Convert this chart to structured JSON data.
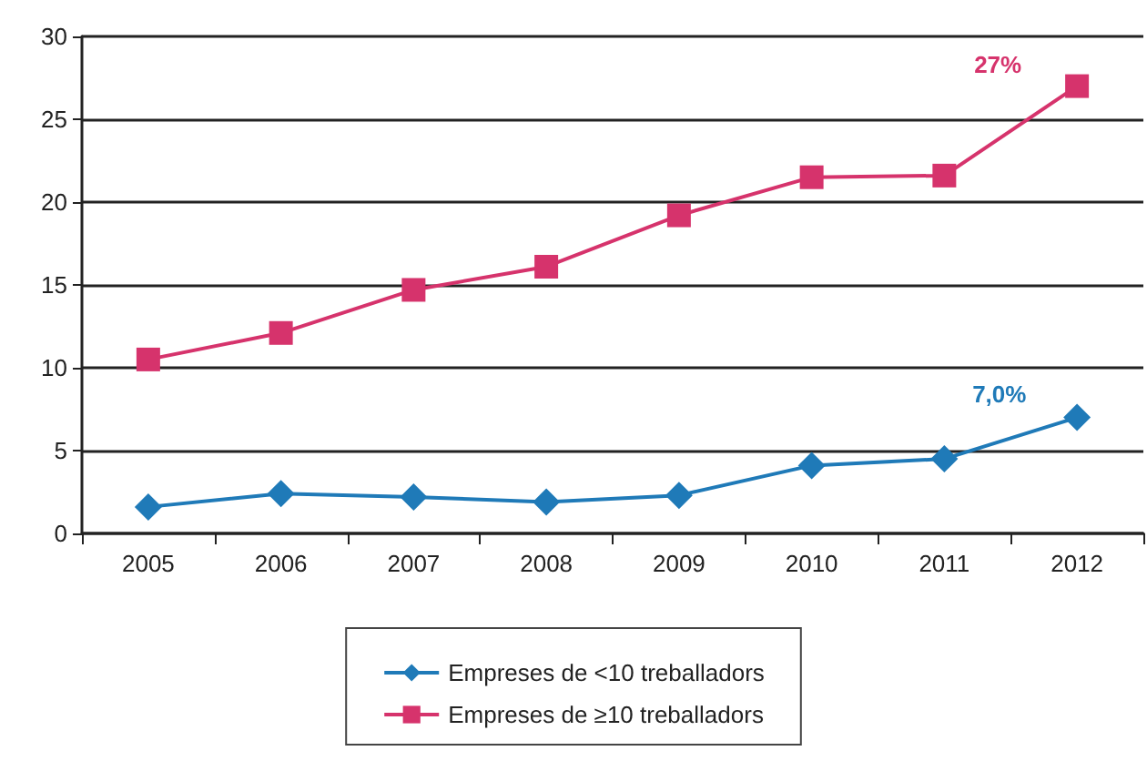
{
  "chart_data": {
    "type": "line",
    "categories": [
      "2005",
      "2006",
      "2007",
      "2008",
      "2009",
      "2010",
      "2011",
      "2012"
    ],
    "series": [
      {
        "name": "Empreses de <10 treballadors",
        "color": "#1f7ab8",
        "marker": "diamond",
        "values": [
          1.6,
          2.4,
          2.2,
          1.9,
          2.3,
          4.1,
          4.5,
          7.0
        ],
        "value_labels": [
          null,
          null,
          null,
          null,
          null,
          null,
          null,
          "7,0%"
        ]
      },
      {
        "name": "Empreses de ≥10 treballadors",
        "color": "#d6336c",
        "marker": "square",
        "values": [
          10.5,
          12.1,
          14.7,
          16.1,
          19.2,
          21.5,
          21.6,
          27
        ],
        "value_labels": [
          null,
          null,
          null,
          null,
          null,
          null,
          null,
          "27%"
        ]
      }
    ],
    "ylim": [
      0,
      30
    ],
    "yticks": [
      0,
      5,
      10,
      15,
      20,
      25,
      30
    ],
    "grid": "y",
    "legend": "bottom",
    "line_style": "solid"
  }
}
